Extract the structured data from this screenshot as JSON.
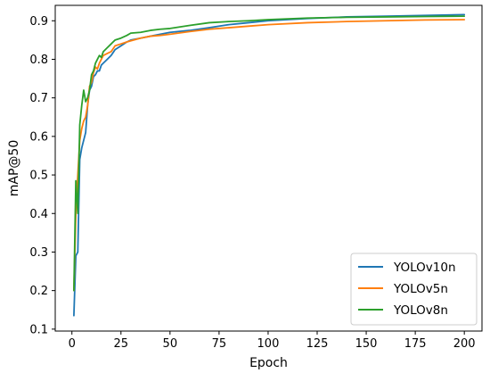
{
  "chart_data": {
    "type": "line",
    "title": "",
    "xlabel": "Epoch",
    "ylabel": "mAP@50",
    "xlim": [
      -8.5,
      209
    ],
    "ylim": [
      0.095,
      0.94
    ],
    "xticks": [
      0,
      25,
      50,
      75,
      100,
      125,
      150,
      175,
      200
    ],
    "yticks": [
      0.1,
      0.2,
      0.3,
      0.4,
      0.5,
      0.6,
      0.7,
      0.8,
      0.9
    ],
    "grid": false,
    "legend_position": "lower-right",
    "series": [
      {
        "name": "YOLOv10n",
        "color": "#1f77b4",
        "x": [
          1,
          2,
          3,
          4,
          5,
          6,
          7,
          8,
          9,
          10,
          11,
          12,
          13,
          14,
          15,
          16,
          18,
          20,
          22,
          25,
          28,
          30,
          35,
          40,
          45,
          50,
          60,
          70,
          80,
          90,
          100,
          120,
          140,
          160,
          180,
          200
        ],
        "y": [
          0.135,
          0.29,
          0.3,
          0.54,
          0.57,
          0.59,
          0.61,
          0.68,
          0.72,
          0.73,
          0.755,
          0.76,
          0.77,
          0.77,
          0.785,
          0.79,
          0.8,
          0.81,
          0.825,
          0.835,
          0.845,
          0.85,
          0.855,
          0.86,
          0.865,
          0.87,
          0.875,
          0.882,
          0.89,
          0.895,
          0.9,
          0.906,
          0.91,
          0.912,
          0.914,
          0.916
        ]
      },
      {
        "name": "YOLOv5n",
        "color": "#ff7f0e",
        "x": [
          1,
          2,
          3,
          4,
          5,
          6,
          7,
          8,
          9,
          10,
          11,
          12,
          13,
          14,
          15,
          16,
          18,
          20,
          22,
          25,
          28,
          30,
          35,
          40,
          45,
          50,
          60,
          70,
          80,
          90,
          100,
          120,
          140,
          160,
          180,
          200
        ],
        "y": [
          0.2,
          0.4,
          0.5,
          0.59,
          0.62,
          0.64,
          0.65,
          0.68,
          0.73,
          0.74,
          0.765,
          0.78,
          0.775,
          0.79,
          0.8,
          0.81,
          0.815,
          0.82,
          0.835,
          0.84,
          0.845,
          0.848,
          0.855,
          0.86,
          0.862,
          0.865,
          0.872,
          0.878,
          0.882,
          0.886,
          0.89,
          0.895,
          0.898,
          0.9,
          0.902,
          0.903
        ]
      },
      {
        "name": "YOLOv8n",
        "color": "#2ca02c",
        "x": [
          1,
          2,
          3,
          4,
          5,
          6,
          7,
          8,
          9,
          10,
          11,
          12,
          13,
          14,
          15,
          16,
          18,
          20,
          22,
          25,
          28,
          30,
          35,
          40,
          45,
          50,
          60,
          70,
          80,
          90,
          100,
          120,
          140,
          160,
          180,
          200
        ],
        "y": [
          0.2,
          0.485,
          0.4,
          0.63,
          0.68,
          0.72,
          0.69,
          0.7,
          0.72,
          0.76,
          0.77,
          0.79,
          0.8,
          0.81,
          0.805,
          0.82,
          0.83,
          0.84,
          0.85,
          0.855,
          0.862,
          0.868,
          0.87,
          0.875,
          0.878,
          0.88,
          0.888,
          0.895,
          0.898,
          0.9,
          0.903,
          0.907,
          0.909,
          0.91,
          0.911,
          0.912
        ]
      }
    ]
  }
}
